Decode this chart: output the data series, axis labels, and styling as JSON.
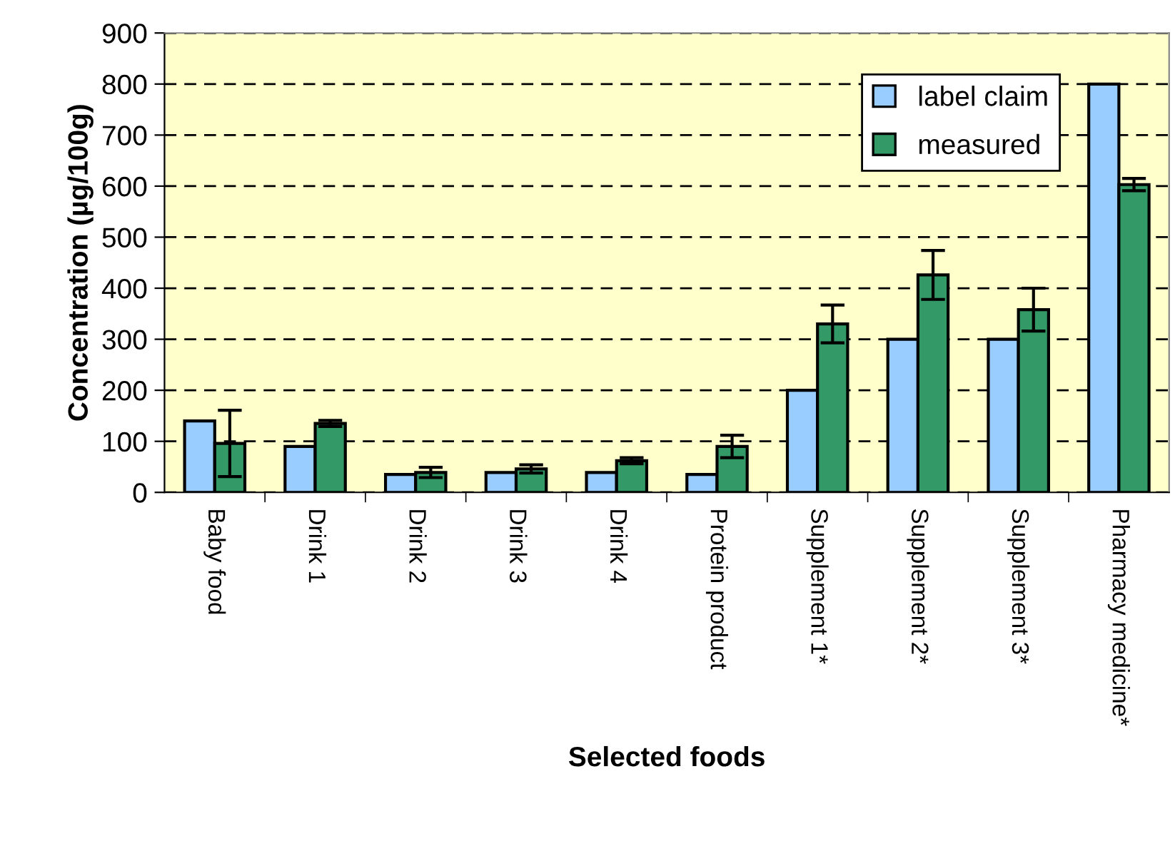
{
  "chart_data": {
    "type": "bar",
    "xlabel": "Selected foods",
    "ylabel": "Concentration (µg/100g)",
    "categories": [
      "Baby food",
      "Drink 1",
      "Drink 2",
      "Drink 3",
      "Drink 4",
      "Protein product",
      "Supplement 1*",
      "Supplement 2*",
      "Supplement 3*",
      "Pharmacy medicine*"
    ],
    "series": [
      {
        "name": "label claim",
        "color": "#99ccff",
        "values": [
          140,
          90,
          35,
          39,
          39,
          35,
          200,
          300,
          300,
          800
        ]
      },
      {
        "name": "measured",
        "color": "#339966",
        "values": [
          96,
          135,
          39,
          46,
          62,
          90,
          330,
          426,
          358,
          603
        ],
        "errors": [
          65,
          6,
          10,
          8,
          6,
          22,
          37,
          48,
          42,
          12
        ]
      }
    ],
    "ylim": [
      0,
      900
    ],
    "yticks": [
      0,
      100,
      200,
      300,
      400,
      500,
      600,
      700,
      800,
      900
    ],
    "grid": "y",
    "legend": "top right"
  }
}
